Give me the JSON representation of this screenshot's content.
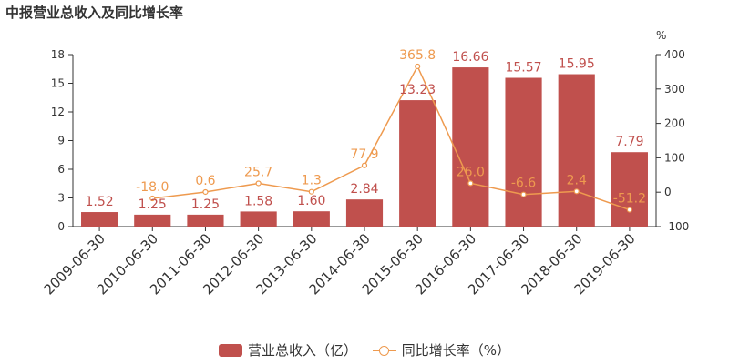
{
  "title": "中报营业总收入及同比增长率",
  "colors": {
    "bar": "#c0504d",
    "line": "#ee9a4f",
    "axis": "#333333",
    "bar_label": "#c0504d",
    "line_label": "#ee9a4f"
  },
  "chart_data": {
    "type": "bar",
    "title": "中报营业总收入及同比增长率",
    "categories": [
      "2009-06-30",
      "2010-06-30",
      "2011-06-30",
      "2012-06-30",
      "2013-06-30",
      "2014-06-30",
      "2015-06-30",
      "2016-06-30",
      "2017-06-30",
      "2018-06-30",
      "2019-06-30"
    ],
    "series": [
      {
        "name": "营业总收入（亿）",
        "type": "bar",
        "axis": "left",
        "values": [
          1.52,
          1.25,
          1.25,
          1.58,
          1.6,
          2.84,
          13.23,
          16.66,
          15.57,
          15.95,
          7.79
        ],
        "labels": [
          "1.52",
          "1.25",
          "1.25",
          "1.58",
          "1.60",
          "2.84",
          "13.23",
          "16.66",
          "15.57",
          "15.95",
          "7.79"
        ]
      },
      {
        "name": "同比增长率（%）",
        "type": "line",
        "axis": "right",
        "values": [
          null,
          -18.0,
          0.6,
          25.7,
          1.3,
          77.9,
          365.8,
          26.0,
          -6.6,
          2.4,
          -51.2
        ],
        "labels": [
          null,
          "-18.0",
          "0.6",
          "25.7",
          "1.3",
          "77.9",
          "365.8",
          "26.0",
          "-6.6",
          "2.4",
          "-51.2"
        ]
      }
    ],
    "y_left": {
      "ylim": [
        0,
        18
      ],
      "ticks": [
        "0",
        "3",
        "6",
        "9",
        "12",
        "15",
        "18"
      ],
      "tick_values": [
        0,
        3,
        6,
        9,
        12,
        15,
        18
      ]
    },
    "y_right": {
      "ylim": [
        -100,
        400
      ],
      "ticks": [
        "-100",
        "0",
        "100",
        "200",
        "300",
        "400"
      ],
      "tick_values": [
        -100,
        0,
        100,
        200,
        300,
        400
      ],
      "unit": "%"
    },
    "grid": false,
    "legend_position": "bottom"
  }
}
